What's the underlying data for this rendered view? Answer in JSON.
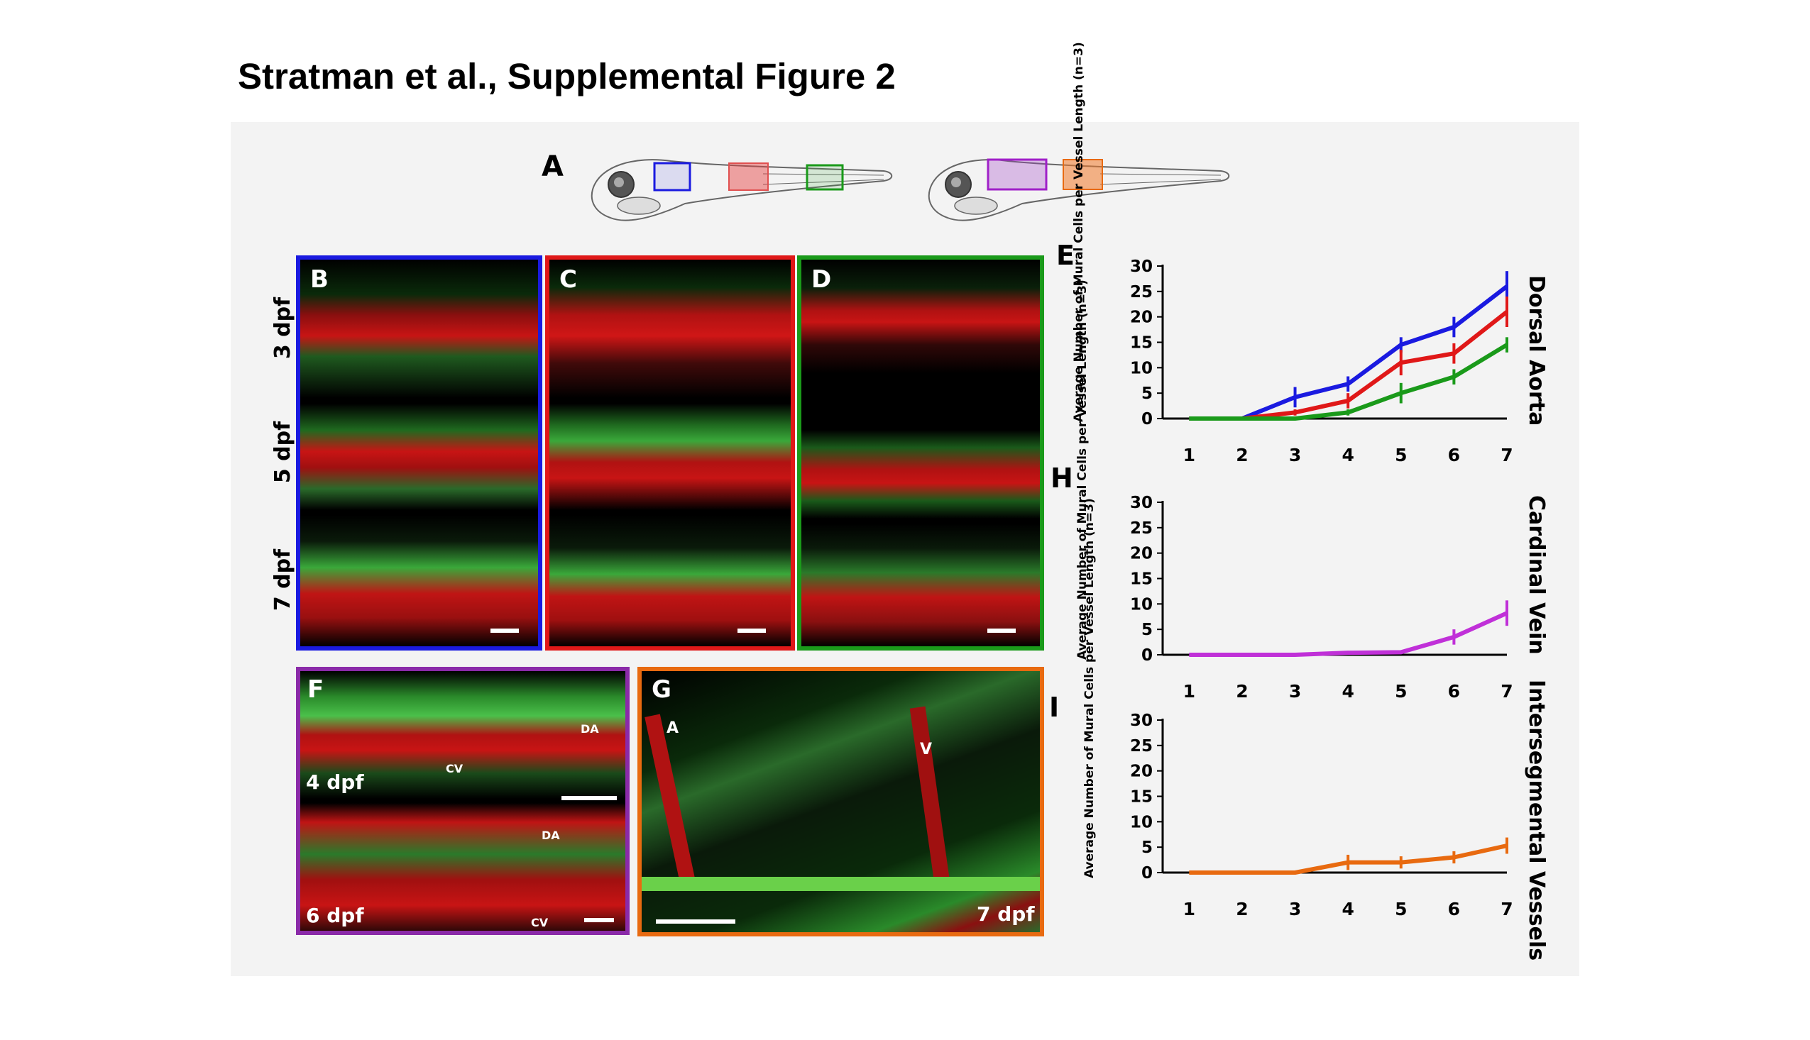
{
  "title": "Stratman et al., Supplemental Figure 2",
  "panels": {
    "A": "A",
    "B": "B",
    "C": "C",
    "D": "D",
    "E": "E",
    "F": "F",
    "G": "G",
    "H": "H",
    "I": "I"
  },
  "stage_labels": [
    "3 dpf",
    "5 dpf",
    "7 dpf"
  ],
  "panel_F": {
    "top_stage": "4 dpf",
    "bottom_stage": "6 dpf",
    "da": "DA",
    "cv": "CV"
  },
  "panel_G": {
    "stage": "7 dpf",
    "artery": "A",
    "vein": "V"
  },
  "colors": {
    "blue": "#1a1ae0",
    "red": "#e01818",
    "green": "#1a9a1a",
    "purple": "#a020c8",
    "orange": "#e86a10",
    "violet_line": "#c030d8"
  },
  "chart_data": [
    {
      "type": "line",
      "panel": "E",
      "side_title": "Dorsal Aorta",
      "ylabel": "Average Number of Mural Cells per Vessel Length (n=3)",
      "x": [
        1,
        2,
        3,
        4,
        5,
        6,
        7
      ],
      "ylim": [
        0,
        30
      ],
      "yticks": [
        0,
        5,
        10,
        15,
        20,
        25,
        30
      ],
      "series": [
        {
          "color": "#1a1ae0",
          "values": [
            0,
            0,
            4.2,
            6.8,
            14.5,
            18,
            26
          ],
          "errors": [
            0,
            0,
            2,
            1.5,
            1.5,
            2,
            3
          ]
        },
        {
          "color": "#e01818",
          "values": [
            0,
            0,
            1.2,
            3.5,
            11,
            12.8,
            21
          ],
          "errors": [
            0,
            0,
            0.6,
            1.5,
            2.5,
            2,
            3
          ]
        },
        {
          "color": "#1a9a1a",
          "values": [
            0,
            0,
            0,
            1.2,
            5,
            8.2,
            14.5
          ],
          "errors": [
            0,
            0,
            0,
            0.6,
            2,
            1.5,
            1.5
          ]
        }
      ]
    },
    {
      "type": "line",
      "panel": "H",
      "side_title": "Cardinal Vein",
      "ylabel": "Average Number of Mural Cells per Vessel Length (n=3)",
      "x": [
        1,
        2,
        3,
        4,
        5,
        6,
        7
      ],
      "ylim": [
        0,
        30
      ],
      "yticks": [
        0,
        5,
        10,
        15,
        20,
        25,
        30
      ],
      "series": [
        {
          "color": "#c030d8",
          "values": [
            0,
            0,
            0,
            0.4,
            0.5,
            3.5,
            8.2
          ],
          "errors": [
            0,
            0,
            0,
            0.3,
            0.3,
            1.5,
            2.5
          ]
        }
      ]
    },
    {
      "type": "line",
      "panel": "I",
      "side_title": "Intersegmental Vessels",
      "ylabel": "Average Number of Mural Cells per Vessel Length (n=3)",
      "x": [
        1,
        2,
        3,
        4,
        5,
        6,
        7
      ],
      "ylim": [
        0,
        30
      ],
      "yticks": [
        0,
        5,
        10,
        15,
        20,
        25,
        30
      ],
      "series": [
        {
          "color": "#e86a10",
          "values": [
            0,
            0,
            0,
            2,
            2,
            3,
            5.3
          ],
          "errors": [
            0,
            0,
            0,
            1.5,
            1.2,
            1.2,
            1.6
          ]
        }
      ]
    }
  ]
}
